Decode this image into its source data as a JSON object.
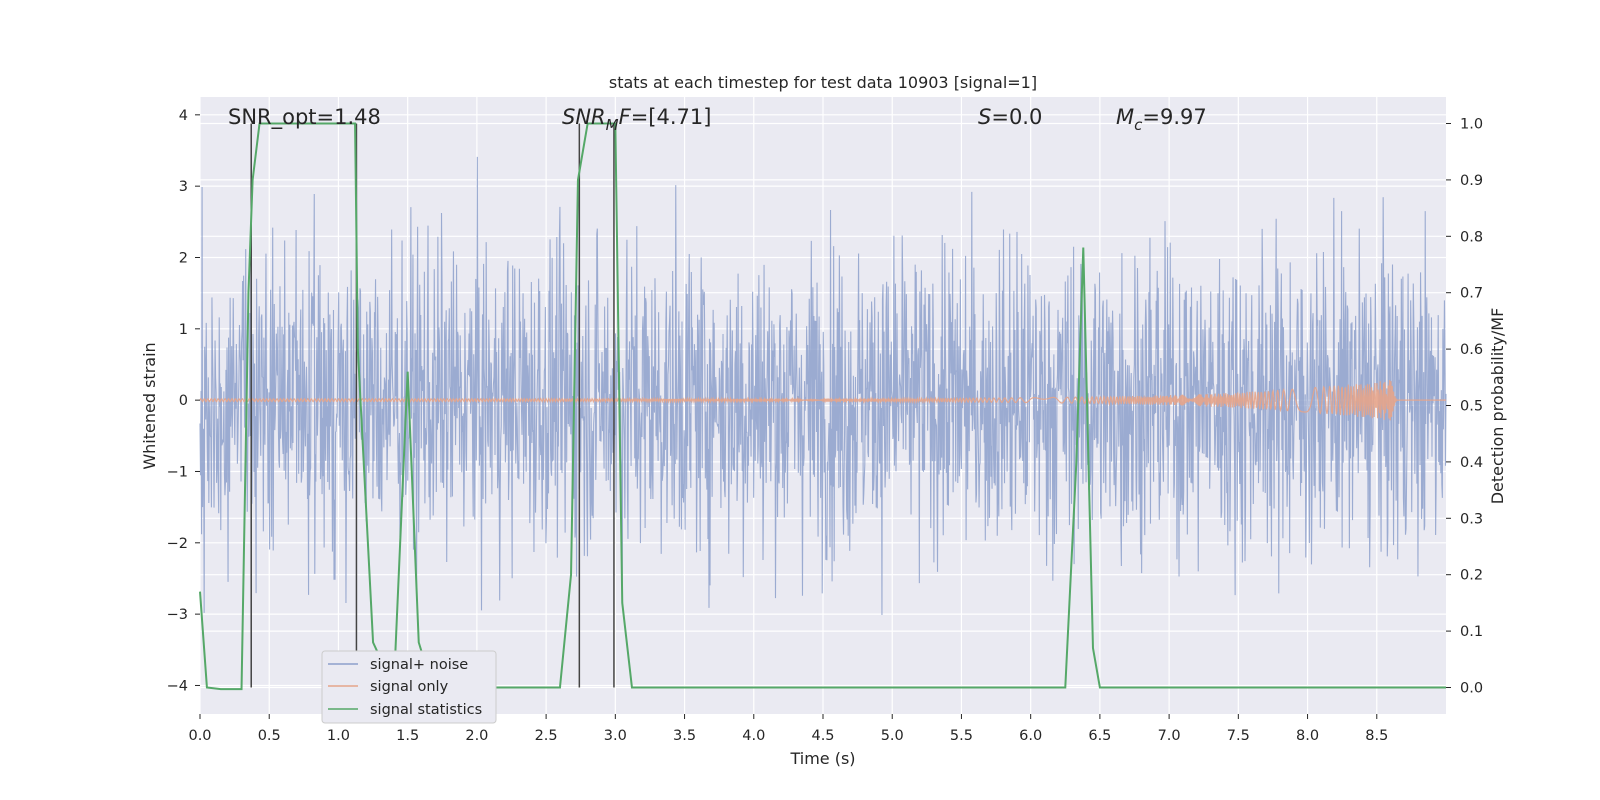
{
  "chart_data": {
    "type": "line",
    "title": "stats at each timestep for test data 10903 [signal=1]",
    "xlabel": "Time (s)",
    "ylabel": "Whitened strain",
    "y2label": "Detection probability/MF",
    "xlim": [
      0,
      9.0
    ],
    "ylim": [
      -4.4,
      4.25
    ],
    "y2lim": [
      -0.047,
      1.047
    ],
    "grid": true,
    "legend_position": "lower-left",
    "x_ticks": [
      "0.0",
      "0.5",
      "1.0",
      "1.5",
      "2.0",
      "2.5",
      "3.0",
      "3.5",
      "4.0",
      "4.5",
      "5.0",
      "5.5",
      "6.0",
      "6.5",
      "7.0",
      "7.5",
      "8.0",
      "8.5"
    ],
    "y_ticks": [
      "4",
      "3",
      "2",
      "1",
      "0",
      "−1",
      "−2",
      "−3",
      "−4"
    ],
    "y2_ticks": [
      "1.0",
      "0.9",
      "0.8",
      "0.7",
      "0.6",
      "0.5",
      "0.4",
      "0.3",
      "0.2",
      "0.1",
      "0.0"
    ],
    "annotations": {
      "snr_opt": "SNR_opt=1.48",
      "snr_mf_main": "SNR",
      "snr_mf_sub": "M",
      "snr_mf_tail": "F",
      "snr_mf_value": "=[4.71]",
      "s_main": "S",
      "s_value": "=0.0",
      "mc_main": "M",
      "mc_sub": "c",
      "mc_value": "=9.97"
    },
    "vertical_lines_x": [
      0.37,
      1.13,
      2.74,
      2.99
    ],
    "series": [
      {
        "name": "signal+ noise",
        "color": "#8da0cb",
        "description_values": "dense noise, envelope about ±2.5, peaks to ±4",
        "amplitude_range": [
          -4.0,
          3.9
        ]
      },
      {
        "name": "signal only",
        "color": "#e5a48a",
        "chirp_start_amplitude": 0.02,
        "chirp_end_x": 8.65,
        "chirp_end_amplitude": 0.3
      },
      {
        "name": "signal statistics",
        "color": "#55a868",
        "axis": "right",
        "x": [
          0.0,
          0.05,
          0.15,
          0.3,
          0.35,
          0.38,
          0.43,
          0.48,
          1.0,
          1.12,
          1.14,
          1.25,
          1.4,
          1.5,
          1.58,
          1.68,
          1.8,
          2.6,
          2.68,
          2.73,
          2.8,
          2.85,
          2.95,
          3.0,
          3.05,
          3.12,
          3.2,
          6.25,
          6.33,
          6.38,
          6.45,
          6.5,
          6.6,
          9.0
        ],
        "y": [
          0.17,
          0.0,
          -0.003,
          -0.003,
          0.7,
          0.9,
          1.0,
          1.0,
          1.0,
          1.0,
          0.6,
          0.08,
          0.0,
          0.56,
          0.08,
          0.0,
          0.0,
          0.0,
          0.2,
          0.9,
          1.0,
          1.0,
          1.0,
          1.0,
          0.15,
          0.0,
          0.0,
          0.0,
          0.4,
          0.78,
          0.07,
          0.0,
          0.0,
          0.0
        ]
      }
    ]
  },
  "legend": {
    "items": [
      "signal+ noise",
      "signal only",
      "signal statistics"
    ]
  },
  "colors": {
    "background": "#eaeaf2",
    "grid": "#ffffff",
    "noise": "#8da0cb",
    "signal": "#e5a48a",
    "stat": "#55a868",
    "vline": "#444444"
  }
}
